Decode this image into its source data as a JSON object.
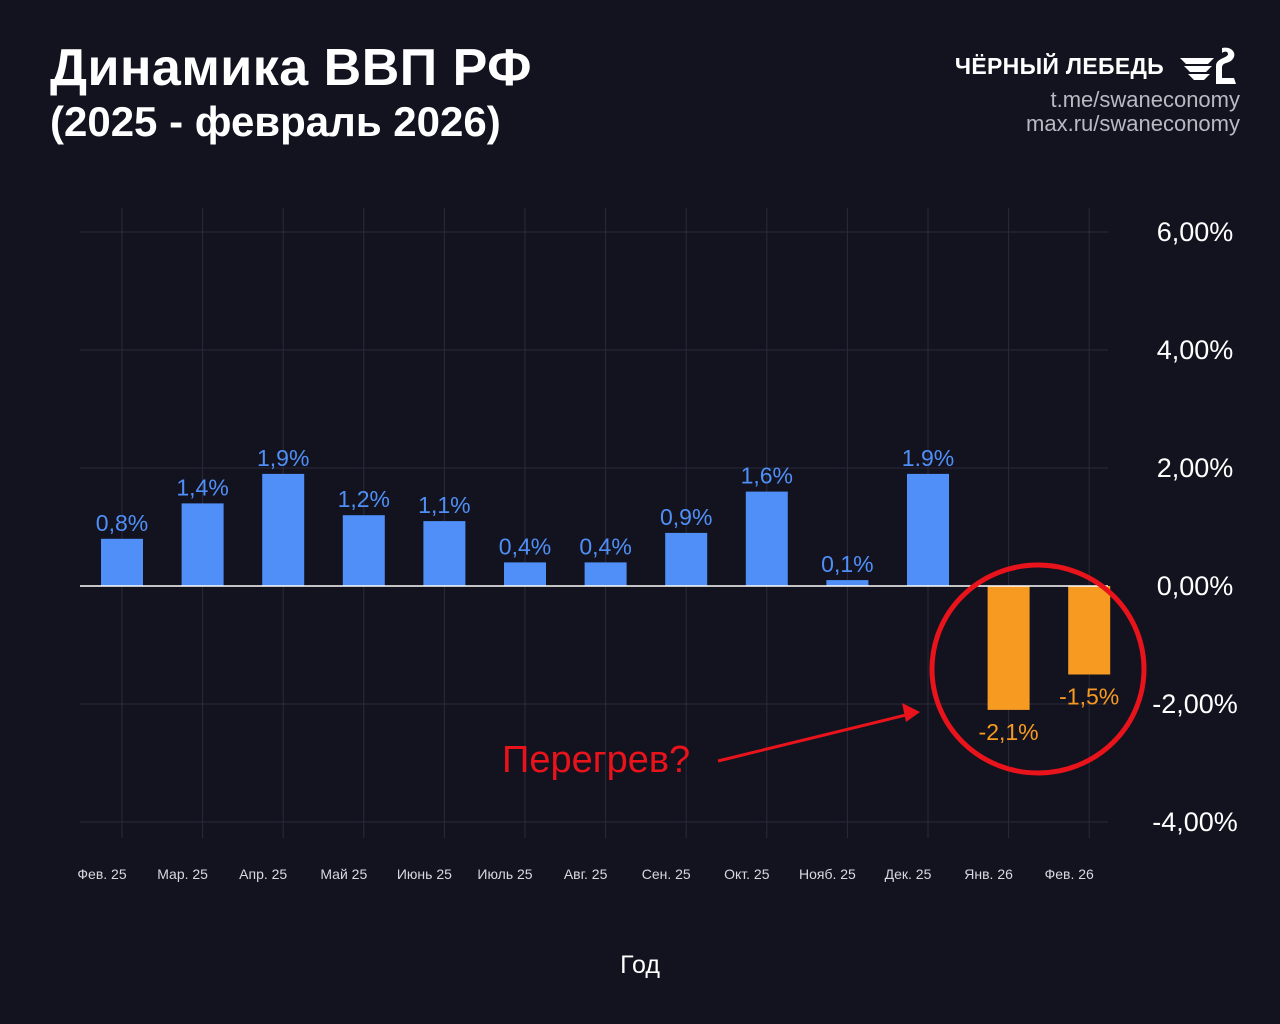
{
  "header": {
    "title": "Динамика ВВП РФ",
    "subtitle": "(2025 - февраль 2026)"
  },
  "brand": {
    "name": "ЧЁРНЫЙ ЛЕБЕДЬ",
    "links": [
      "t.me/swaneconomy",
      "max.ru/swaneconomy"
    ],
    "logo_icon": "swan-logo-icon"
  },
  "annotation": {
    "text": "Перегрев?",
    "color": "#e8131b"
  },
  "colors": {
    "positive": "#4f8ff7",
    "negative": "#f79a22",
    "background": "#13131f"
  },
  "chart_data": {
    "type": "bar",
    "categories": [
      "Фев. 25",
      "Мар. 25",
      "Апр. 25",
      "Май 25",
      "Июнь 25",
      "Июль 25",
      "Авг. 25",
      "Сен. 25",
      "Окт. 25",
      "Нояб. 25",
      "Дек. 25",
      "Янв. 26",
      "Фев. 26"
    ],
    "values": [
      0.8,
      1.4,
      1.9,
      1.2,
      1.1,
      0.4,
      0.4,
      0.9,
      1.6,
      0.1,
      1.9,
      -2.1,
      -1.5
    ],
    "data_labels": [
      "0,8%",
      "1,4%",
      "1,9%",
      "1,2%",
      "1,1%",
      "0,4%",
      "0,4%",
      "0,9%",
      "1,6%",
      "0,1%",
      "1.9%",
      "-2,1%",
      "-1,5%"
    ],
    "xlabel": "Год",
    "ylabel": "",
    "ylim": [
      -4,
      6
    ],
    "yticks": [
      6,
      4,
      2,
      0,
      -2,
      -4
    ],
    "ytick_labels": [
      "6,00%",
      "4,00%",
      "2,00%",
      "0,00%",
      "-2,00%",
      "-4,00%"
    ],
    "grid": true,
    "axis_side": "right"
  }
}
